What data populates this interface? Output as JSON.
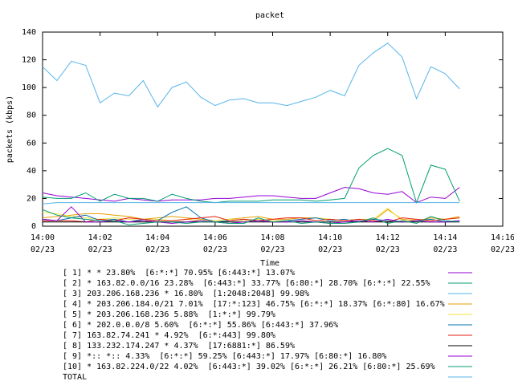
{
  "chart_data": {
    "type": "line",
    "title": "packet",
    "xlabel": "Time",
    "ylabel": "packets (kbps)",
    "x": [
      0,
      0.5,
      1,
      1.5,
      2,
      2.5,
      3,
      3.5,
      4,
      4.5,
      5,
      5.5,
      6,
      6.5,
      7,
      7.5,
      8,
      8.5,
      9,
      9.5,
      10,
      10.5,
      11,
      11.5,
      12,
      12.5,
      13,
      13.5,
      14,
      14.5
    ],
    "xlim": [
      0,
      16
    ],
    "xticks": [
      {
        "value": 0,
        "label": "14:00\n02/23"
      },
      {
        "value": 2,
        "label": "14:02\n02/23"
      },
      {
        "value": 4,
        "label": "14:04\n02/23"
      },
      {
        "value": 6,
        "label": "14:06\n02/23"
      },
      {
        "value": 8,
        "label": "14:08\n02/23"
      },
      {
        "value": 10,
        "label": "14:10\n02/23"
      },
      {
        "value": 12,
        "label": "14:12\n02/23"
      },
      {
        "value": 14,
        "label": "14:14\n02/23"
      },
      {
        "value": 16,
        "label": "14:16\n02/23"
      }
    ],
    "ylim": [
      0,
      140
    ],
    "yticks": [
      0,
      20,
      40,
      60,
      80,
      100,
      120,
      140
    ],
    "series": [
      {
        "name": "[ 1] * * 23.80%  [6:*:*] 70.95% [6:443:*] 13.07%",
        "color": "#9400d3",
        "values": [
          24,
          22,
          21,
          20,
          19,
          18,
          20,
          19,
          18,
          19,
          19,
          19,
          20,
          20,
          21,
          22,
          22,
          21,
          20,
          20,
          24,
          28,
          27,
          24,
          23,
          25,
          17,
          21,
          20,
          28
        ]
      },
      {
        "name": "[ 2] * 163.82.0.0/16 23.28%  [6:443:*] 33.77% [6:80:*] 28.70% [6:*:*] 22.55%",
        "color": "#009e73",
        "values": [
          21,
          20,
          20,
          24,
          18,
          23,
          20,
          20,
          18,
          23,
          20,
          18,
          17,
          18,
          18,
          18,
          19,
          19,
          19,
          18,
          19,
          20,
          42,
          51,
          56,
          51,
          17,
          44,
          41,
          18
        ]
      },
      {
        "name": "[ 3] 203.206.168.236 * 16.80%  [1:2048:2048] 99.98%",
        "color": "#56b4e9",
        "values": [
          16,
          17,
          17,
          17,
          17,
          17,
          17,
          17,
          17,
          17,
          17,
          17,
          17,
          17,
          17,
          17,
          17,
          17,
          17,
          17,
          17,
          17,
          17,
          17,
          17,
          17,
          17,
          17,
          17,
          17
        ]
      },
      {
        "name": "[ 4] * 203.206.184.0/21 7.01%  [17:*:123] 46.75% [6:*:*] 18.37% [6:*:80] 16.67%",
        "color": "#e69f00",
        "values": [
          6,
          7,
          8,
          9,
          9,
          8,
          7,
          5,
          6,
          7,
          6,
          5,
          4,
          5,
          6,
          7,
          5,
          5,
          6,
          6,
          5,
          4,
          5,
          4,
          12,
          5,
          4,
          6,
          5,
          7
        ]
      },
      {
        "name": "[ 5] * 203.206.168.236 5.88%  [1:*:*] 99.79%",
        "color": "#f0e442",
        "values": [
          10,
          9,
          7,
          6,
          5,
          6,
          5,
          4,
          5,
          4,
          5,
          4,
          4,
          5,
          4,
          5,
          4,
          4,
          5,
          6,
          5,
          4,
          5,
          5,
          13,
          4,
          5,
          4,
          5,
          6
        ]
      },
      {
        "name": "[ 6] * 202.0.0.0/8 5.60%  [6:*:*] 55.86% [6:443:*] 37.96%",
        "color": "#0072b2",
        "values": [
          5,
          4,
          6,
          8,
          4,
          5,
          3,
          5,
          4,
          10,
          14,
          6,
          3,
          4,
          5,
          4,
          3,
          4,
          5,
          6,
          4,
          5,
          3,
          5,
          4,
          3,
          4,
          5,
          3,
          4
        ]
      },
      {
        "name": "[ 7] 163.82.74.241 * 4.92%  [6:*:443] 99.80%",
        "color": "#e51e10",
        "values": [
          4,
          4,
          4,
          3,
          5,
          4,
          6,
          5,
          4,
          4,
          5,
          6,
          7,
          4,
          5,
          4,
          5,
          6,
          6,
          4,
          5,
          4,
          5,
          4,
          3,
          6,
          5,
          4,
          5,
          6
        ]
      },
      {
        "name": "[ 8] 133.232.174.247 * 4.37%  [17:6881:*] 86.59%",
        "color": "#000000",
        "values": [
          3,
          3,
          3,
          3,
          3,
          3,
          3,
          3,
          3,
          3,
          3,
          3,
          3,
          3,
          3,
          3,
          3,
          3,
          3,
          3,
          3,
          3,
          3,
          3,
          3,
          3,
          3,
          3,
          3,
          3
        ]
      },
      {
        "name": "[ 9] *:: *:: 4.33%  [6:*:*] 59.25% [6:443:*] 17.97% [6:80:*] 16.80%",
        "color": "#9400d3",
        "values": [
          5,
          4,
          14,
          3,
          3,
          4,
          3,
          4,
          3,
          2,
          3,
          4,
          3,
          2,
          3,
          4,
          3,
          3,
          4,
          3,
          2,
          3,
          4,
          3,
          5,
          3,
          4,
          3,
          3,
          4
        ]
      },
      {
        "name": "[10] * 163.82.224.0/22 4.02%  [6:443:*] 39.02% [6:*:*] 26.21% [6:80:*] 25.69%",
        "color": "#009e73",
        "values": [
          12,
          8,
          6,
          5,
          4,
          4,
          1,
          2,
          3,
          3,
          2,
          3,
          3,
          2,
          2,
          6,
          3,
          4,
          2,
          3,
          2,
          2,
          3,
          6,
          2,
          4,
          2,
          7,
          4,
          3
        ]
      },
      {
        "name": "TOTAL",
        "color": "#56b4e9",
        "values": [
          115,
          105,
          119,
          116,
          89,
          96,
          94,
          105,
          86,
          100,
          104,
          93,
          87,
          91,
          92,
          89,
          89,
          87,
          90,
          93,
          98,
          94,
          116,
          125,
          132,
          122,
          92,
          115,
          110,
          99
        ]
      }
    ]
  }
}
